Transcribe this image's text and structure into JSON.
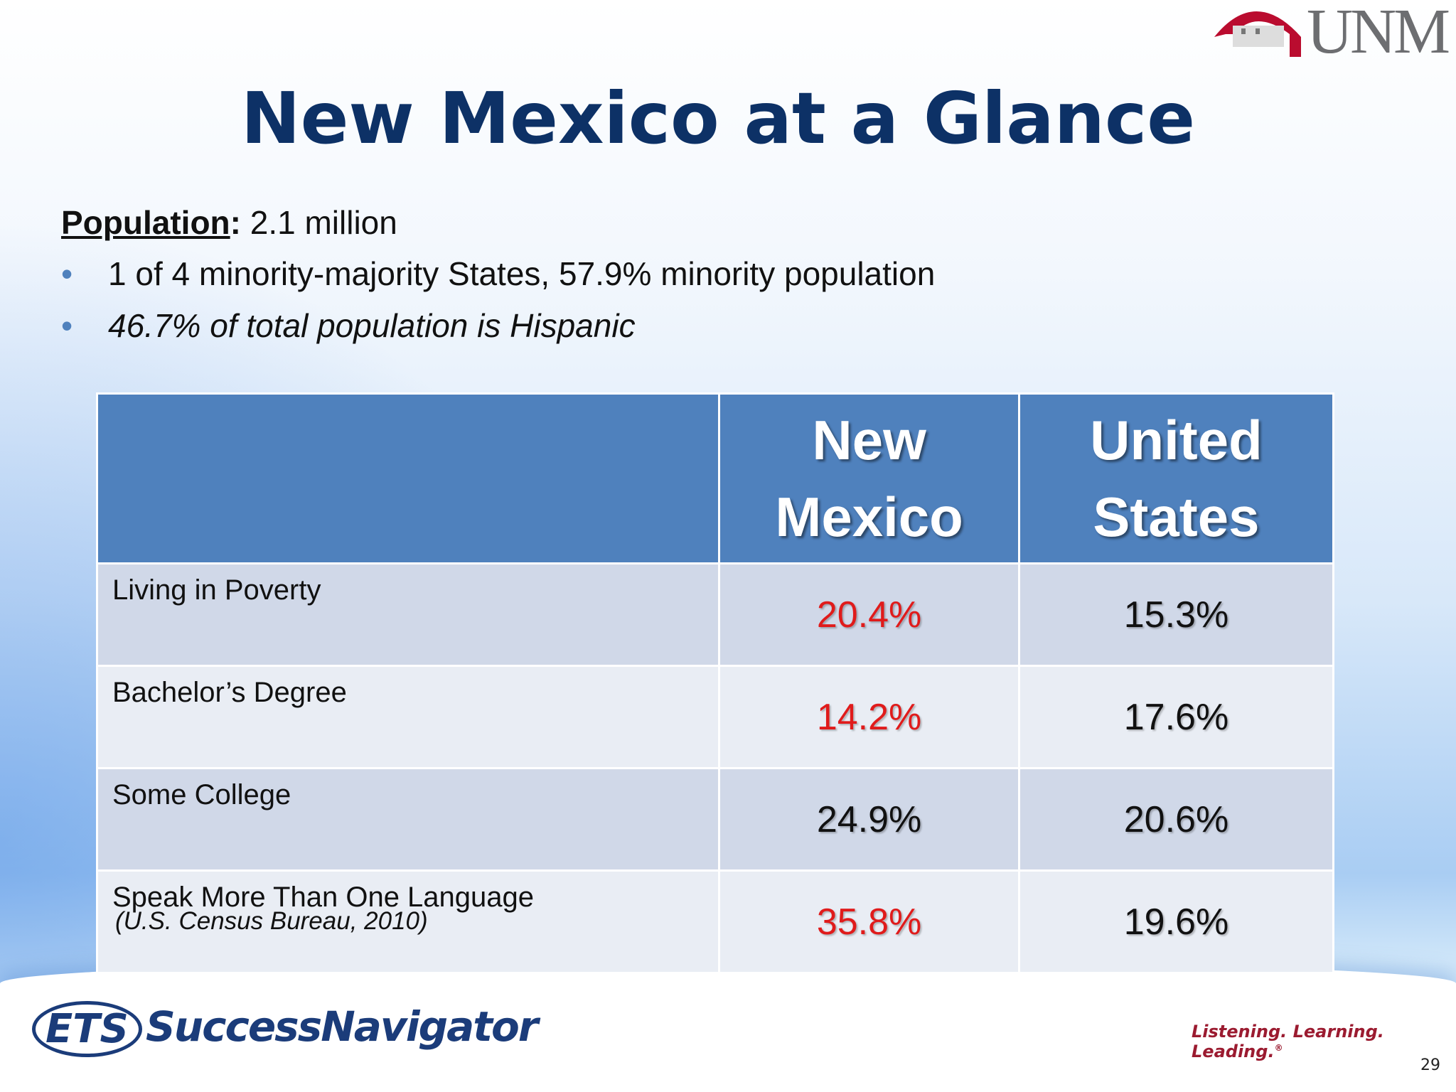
{
  "logo": {
    "text": "UNM"
  },
  "title": "New Mexico at a Glance",
  "population": {
    "label": "Population",
    "separator": ":",
    "value": "2.1 million"
  },
  "bullets": [
    {
      "text": "1 of 4 minority-majority States, 57.9% minority population",
      "italic": false
    },
    {
      "text": "46.7% of total population is Hispanic",
      "italic": true
    }
  ],
  "table": {
    "columns": [
      "New Mexico",
      "United States"
    ],
    "rows": [
      {
        "label": "Living in Poverty",
        "values": [
          "20.4%",
          "15.3%"
        ],
        "highlight": [
          true,
          false
        ]
      },
      {
        "label": "Bachelor’s Degree",
        "values": [
          "14.2%",
          "17.6%"
        ],
        "highlight": [
          true,
          false
        ]
      },
      {
        "label": "Some College",
        "values": [
          "24.9%",
          "20.6%"
        ],
        "highlight": [
          false,
          false
        ]
      },
      {
        "label": "Speak More Than One Language",
        "values": [
          "35.8%",
          "19.6%"
        ],
        "highlight": [
          true,
          false
        ]
      }
    ],
    "highlight_color": "#e01b1b"
  },
  "source": "(U.S. Census Bureau, 2010)",
  "footer": {
    "ets": "ETS",
    "brand": "SuccessNavigator",
    "tagline": "Listening. Learning. Leading.",
    "registered": "®",
    "page_number": "29"
  }
}
